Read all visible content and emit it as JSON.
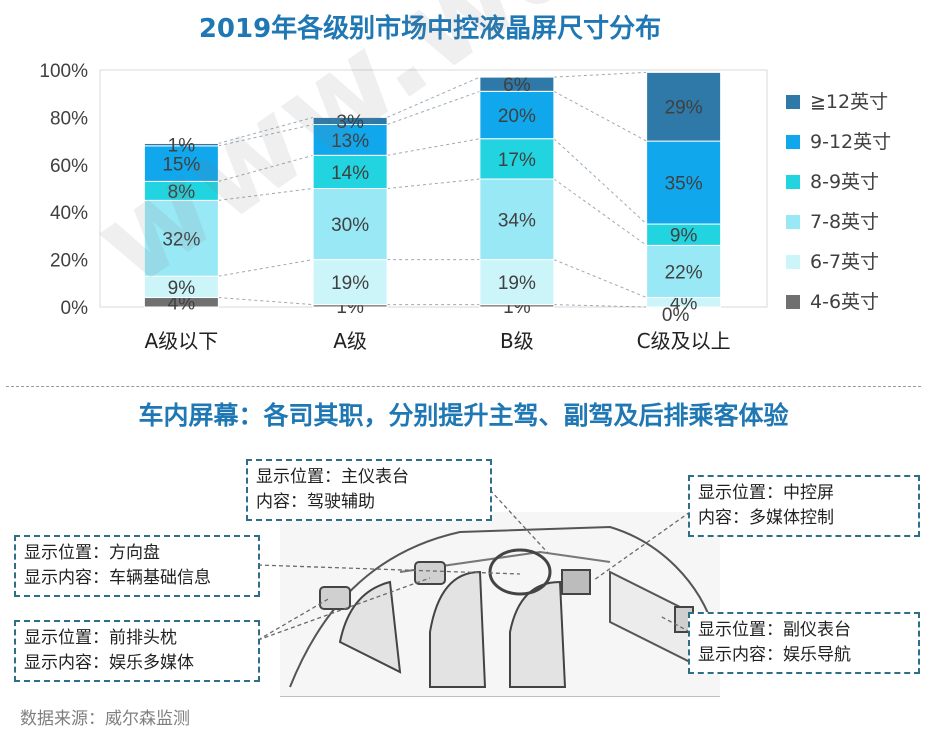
{
  "chart_data": {
    "type": "bar",
    "stacked": true,
    "title": "2019年各级别市场中控液晶屏尺寸分布",
    "categories": [
      "A级以下",
      "A级",
      "B级",
      "C级及以上"
    ],
    "ylim": [
      0,
      100
    ],
    "yticks": [
      "0%",
      "20%",
      "40%",
      "60%",
      "80%",
      "100%"
    ],
    "legend_position": "right",
    "series": [
      {
        "name": "4-6英寸",
        "color": "#707070",
        "values": [
          4,
          1,
          1,
          0
        ],
        "labels": [
          "4%",
          "1%",
          "1%",
          "0%"
        ]
      },
      {
        "name": "6-7英寸",
        "color": "#ccf5fa",
        "values": [
          9,
          19,
          19,
          4
        ],
        "labels": [
          "9%",
          "19%",
          "19%",
          "4%"
        ]
      },
      {
        "name": "7-8英寸",
        "color": "#99e8f5",
        "values": [
          32,
          30,
          34,
          22
        ],
        "labels": [
          "32%",
          "30%",
          "34%",
          "22%"
        ]
      },
      {
        "name": "8-9英寸",
        "color": "#22d4e0",
        "values": [
          8,
          14,
          17,
          9
        ],
        "labels": [
          "8%",
          "14%",
          "17%",
          "9%"
        ]
      },
      {
        "name": "9-12英寸",
        "color": "#11a7ed",
        "values": [
          15,
          13,
          20,
          35
        ],
        "labels": [
          "15%",
          "13%",
          "20%",
          "35%"
        ]
      },
      {
        "name": "≧12英寸",
        "color": "#2e79a8",
        "values": [
          1,
          3,
          6,
          29
        ],
        "labels": [
          "1%",
          "3%",
          "6%",
          "29%"
        ]
      }
    ]
  },
  "section_heading": "车内屏幕：各司其职，分别提升主驾、副驾及后排乘客体验",
  "callouts": {
    "main_dash": {
      "line1": "显示位置：主仪表台",
      "line2": "内容：驾驶辅助"
    },
    "center": {
      "line1": "显示位置：中控屏",
      "line2": "内容：多媒体控制"
    },
    "steering": {
      "line1": "显示位置：方向盘",
      "line2": "显示内容：车辆基础信息"
    },
    "headrest": {
      "line1": "显示位置：前排头枕",
      "line2": "显示内容：娱乐多媒体"
    },
    "passenger": {
      "line1": "显示位置：副仪表台",
      "line2": "显示内容：娱乐导航"
    }
  },
  "source": "数据来源：威尔森监测",
  "watermark": "www.way-s.cn"
}
